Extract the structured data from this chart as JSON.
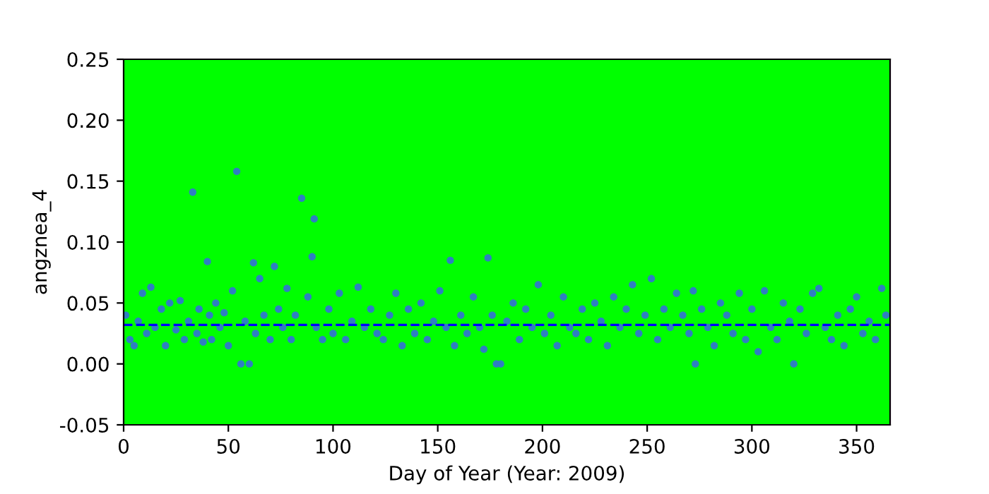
{
  "chart_data": {
    "type": "scatter",
    "xlabel": "Day of Year (Year: 2009)",
    "ylabel": "angznea_4",
    "xlim": [
      0,
      366
    ],
    "ylim": [
      -0.05,
      0.25
    ],
    "xticks": [
      0,
      50,
      100,
      150,
      200,
      250,
      300,
      350
    ],
    "yticks": [
      -0.05,
      {
        "value": 0,
        "label": "0.00"
      },
      0.05,
      {
        "value": 0.1,
        "label": "0.10"
      },
      0.15,
      {
        "value": 0.2,
        "label": "0.20"
      },
      0.25
    ],
    "marker": "circle",
    "grid": false,
    "series": [
      {
        "color": "#2f7fc1",
        "x": [
          1,
          3,
          5,
          7,
          9,
          11,
          13,
          15,
          18,
          20,
          22,
          25,
          27,
          29,
          31,
          33,
          35,
          36,
          38,
          40,
          41,
          42,
          44,
          46,
          48,
          50,
          52,
          54,
          56,
          58,
          60,
          62,
          63,
          65,
          67,
          70,
          72,
          74,
          76,
          78,
          80,
          82,
          85,
          88,
          90,
          91,
          92,
          95,
          98,
          100,
          103,
          106,
          109,
          112,
          115,
          118,
          121,
          124,
          127,
          130,
          133,
          136,
          139,
          142,
          145,
          148,
          151,
          154,
          156,
          158,
          161,
          164,
          167,
          170,
          172,
          174,
          176,
          178,
          180,
          183,
          186,
          189,
          192,
          195,
          198,
          201,
          204,
          207,
          210,
          213,
          216,
          219,
          222,
          225,
          228,
          231,
          234,
          237,
          240,
          243,
          246,
          249,
          252,
          255,
          258,
          261,
          264,
          267,
          270,
          272,
          273,
          276,
          279,
          282,
          285,
          288,
          291,
          294,
          297,
          300,
          303,
          306,
          309,
          312,
          315,
          318,
          320,
          323,
          326,
          329,
          332,
          335,
          338,
          341,
          344,
          347,
          350,
          353,
          356,
          359,
          362,
          364
        ],
        "values": [
          0.04,
          0.02,
          0.015,
          0.035,
          0.058,
          0.025,
          0.063,
          0.03,
          0.045,
          0.015,
          0.05,
          0.028,
          0.052,
          0.02,
          0.035,
          0.141,
          0.025,
          0.045,
          0.018,
          0.084,
          0.04,
          0.02,
          0.05,
          0.03,
          0.042,
          0.015,
          0.06,
          0.158,
          0.0,
          0.035,
          0.0,
          0.083,
          0.025,
          0.07,
          0.04,
          0.02,
          0.08,
          0.045,
          0.03,
          0.062,
          0.02,
          0.04,
          0.136,
          0.055,
          0.088,
          0.119,
          0.03,
          0.02,
          0.045,
          0.025,
          0.058,
          0.02,
          0.035,
          0.063,
          0.03,
          0.045,
          0.025,
          0.02,
          0.04,
          0.058,
          0.015,
          0.045,
          0.025,
          0.05,
          0.02,
          0.035,
          0.06,
          0.03,
          0.085,
          0.015,
          0.04,
          0.025,
          0.055,
          0.03,
          0.012,
          0.087,
          0.04,
          0.0,
          0.0,
          0.035,
          0.05,
          0.02,
          0.045,
          0.03,
          0.065,
          0.025,
          0.04,
          0.015,
          0.055,
          0.03,
          0.025,
          0.045,
          0.02,
          0.05,
          0.035,
          0.015,
          0.055,
          0.03,
          0.045,
          0.065,
          0.025,
          0.04,
          0.07,
          0.02,
          0.045,
          0.03,
          0.058,
          0.04,
          0.025,
          0.06,
          0.0,
          0.045,
          0.03,
          0.015,
          0.05,
          0.04,
          0.025,
          0.058,
          0.02,
          0.045,
          0.01,
          0.06,
          0.03,
          0.02,
          0.05,
          0.035,
          0.0,
          0.045,
          0.025,
          0.058,
          0.062,
          0.03,
          0.02,
          0.04,
          0.015,
          0.045,
          0.055,
          0.025,
          0.035,
          0.02,
          0.062,
          0.04
        ]
      }
    ],
    "ref_lines": [
      {
        "axis": "y",
        "value": 0.032,
        "color": "#0000ff",
        "line_style": "dashed"
      }
    ]
  }
}
